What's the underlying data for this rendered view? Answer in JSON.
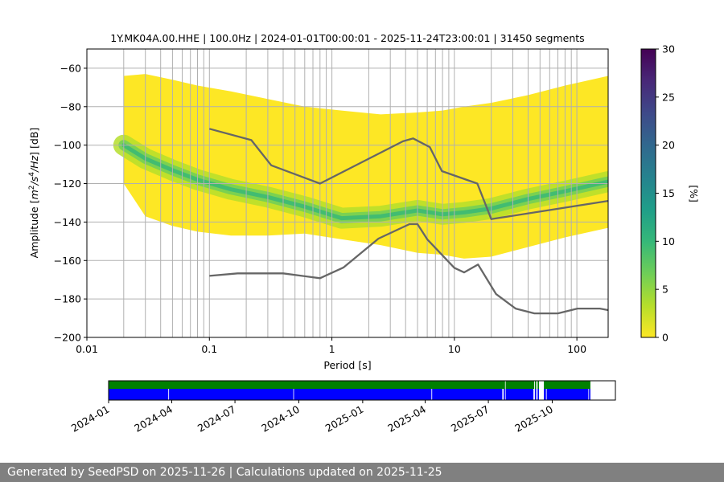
{
  "chart_data": {
    "type": "heatmap",
    "title": "1Y.MK04A.00.HHE | 100.0Hz | 2024-01-01T00:00:01 - 2025-11-24T23:00:01 | 31450 segments",
    "xlabel": "Period [s]",
    "ylabel_parts": [
      "Amplitude [",
      "m",
      "2",
      "/",
      "s",
      "4",
      "/",
      "Hz",
      "] [dB]"
    ],
    "x_scale": "log",
    "xlim": [
      0.01,
      180
    ],
    "ylim": [
      -200,
      -50
    ],
    "x_ticks": [
      {
        "value": 0.01,
        "label": "0.01"
      },
      {
        "value": 0.1,
        "label": "0.1"
      },
      {
        "value": 1,
        "label": "1"
      },
      {
        "value": 10,
        "label": "10"
      },
      {
        "value": 100,
        "label": "100"
      }
    ],
    "y_ticks": [
      {
        "value": -60,
        "label": "−60"
      },
      {
        "value": -80,
        "label": "−80"
      },
      {
        "value": -100,
        "label": "−100"
      },
      {
        "value": -120,
        "label": "−120"
      },
      {
        "value": -140,
        "label": "−140"
      },
      {
        "value": -160,
        "label": "−160"
      },
      {
        "value": -180,
        "label": "−180"
      },
      {
        "value": -200,
        "label": "−200"
      }
    ],
    "grid_x_values": [
      0.02,
      0.03,
      0.04,
      0.05,
      0.06,
      0.07,
      0.08,
      0.09,
      0.2,
      0.3,
      0.4,
      0.5,
      0.6,
      0.7,
      0.8,
      0.9,
      2,
      3,
      4,
      5,
      6,
      7,
      8,
      9,
      20,
      30,
      40,
      50,
      60,
      70,
      80,
      90
    ],
    "density_band": {
      "periods": [
        0.02,
        0.03,
        0.05,
        0.08,
        0.15,
        0.3,
        0.6,
        1.2,
        2.5,
        5,
        8,
        12,
        20,
        40,
        80,
        180
      ],
      "upper_bound": [
        -64,
        -63,
        -66,
        -69,
        -72,
        -76,
        -80,
        -82,
        -84,
        -83,
        -82,
        -80,
        -78,
        -74,
        -69,
        -64
      ],
      "mode": [
        -100,
        -107,
        -113,
        -118,
        -123,
        -127,
        -132,
        -138,
        -137,
        -134,
        -136,
        -135,
        -133,
        -128,
        -124,
        -119
      ],
      "lower_bound": [
        -120,
        -137,
        -142,
        -145,
        -147,
        -147,
        -146,
        -149,
        -152,
        -156,
        -157,
        -159,
        -158,
        -153,
        -148,
        -143
      ]
    },
    "series": [
      {
        "name": "NHNM",
        "color": "#666666",
        "x": [
          0.1,
          0.22,
          0.32,
          0.8,
          3.8,
          4.6,
          6.3,
          7.9,
          15.4,
          20,
          180
        ],
        "y": [
          -91.5,
          -97.4,
          -110.5,
          -120,
          -98,
          -96.5,
          -101,
          -113.5,
          -120,
          -138.5,
          -129
        ]
      },
      {
        "name": "NLNM",
        "color": "#666666",
        "x": [
          0.1,
          0.17,
          0.4,
          0.8,
          1.24,
          2.4,
          4.3,
          5,
          6,
          10,
          12,
          15.6,
          21.9,
          31.6,
          45,
          70,
          101,
          154,
          180
        ],
        "y": [
          -168,
          -166.7,
          -166.7,
          -169.2,
          -163.7,
          -148.6,
          -141.1,
          -141.1,
          -149,
          -163.8,
          -166.2,
          -162.1,
          -177.5,
          -185,
          -187.5,
          -187.5,
          -185,
          -185,
          -185.8
        ]
      }
    ],
    "colorbar": {
      "label": "[%]",
      "min": 0,
      "max": 30,
      "ticks": [
        {
          "value": 0,
          "label": "0"
        },
        {
          "value": 5,
          "label": "5"
        },
        {
          "value": 10,
          "label": "10"
        },
        {
          "value": 15,
          "label": "15"
        },
        {
          "value": 20,
          "label": "20"
        },
        {
          "value": 25,
          "label": "25"
        },
        {
          "value": 30,
          "label": "30"
        }
      ],
      "colors": [
        "#fde725",
        "#b5de2b",
        "#6ece58",
        "#35b779",
        "#1f9e89",
        "#26828e",
        "#31688e",
        "#3e4989",
        "#482878",
        "#440154"
      ]
    },
    "availability": {
      "start": "2024-01-01",
      "end": "2025-12-31",
      "ticks": [
        {
          "date": "2024-01-01",
          "label": "2024-01"
        },
        {
          "date": "2024-04-01",
          "label": "2024-04"
        },
        {
          "date": "2024-07-01",
          "label": "2024-07"
        },
        {
          "date": "2024-10-01",
          "label": "2024-10"
        },
        {
          "date": "2025-01-01",
          "label": "2025-01"
        },
        {
          "date": "2025-04-01",
          "label": "2025-04"
        },
        {
          "date": "2025-07-01",
          "label": "2025-07"
        },
        {
          "date": "2025-10-01",
          "label": "2025-10"
        }
      ],
      "top_color": "#008000",
      "bottom_color": "#0000ff",
      "top_segments": [
        [
          "2024-01-01",
          "2025-07-25"
        ],
        [
          "2025-07-26",
          "2025-09-05"
        ],
        [
          "2025-09-06",
          "2025-09-08"
        ],
        [
          "2025-09-10",
          "2025-09-12"
        ],
        [
          "2025-09-19",
          "2025-11-25"
        ]
      ],
      "bottom_segments": [
        [
          "2024-01-01",
          "2024-03-27"
        ],
        [
          "2024-03-28",
          "2024-09-23"
        ],
        [
          "2024-09-24",
          "2025-04-10"
        ],
        [
          "2025-04-11",
          "2025-07-21"
        ],
        [
          "2025-07-23",
          "2025-07-25"
        ],
        [
          "2025-07-26",
          "2025-09-04"
        ],
        [
          "2025-09-06",
          "2025-09-08"
        ],
        [
          "2025-09-10",
          "2025-09-12"
        ],
        [
          "2025-09-19",
          "2025-09-22"
        ],
        [
          "2025-09-23",
          "2025-11-22"
        ],
        [
          "2025-11-23",
          "2025-11-25"
        ]
      ]
    }
  },
  "footer": {
    "text": "Generated by SeedPSD on 2025-11-26 | Calculations updated on 2025-11-25"
  }
}
